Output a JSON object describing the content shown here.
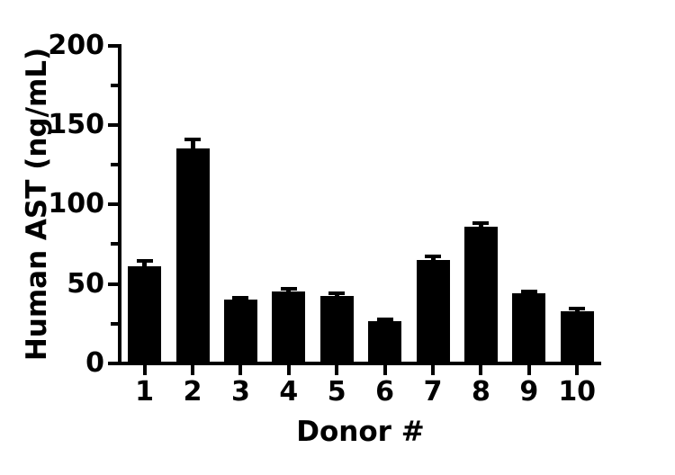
{
  "figure": {
    "background_color": "#ffffff",
    "bar_color": "#000000",
    "axis_color": "#000000",
    "text_color": "#000000"
  },
  "chart_data": {
    "type": "bar",
    "title": "",
    "xlabel": "Donor #",
    "ylabel": "Human AST (ng/mL)",
    "categories": [
      "1",
      "2",
      "3",
      "4",
      "5",
      "6",
      "7",
      "8",
      "9",
      "10"
    ],
    "series": [
      {
        "name": "Human AST",
        "values": [
          61,
          135.5,
          40,
          45.5,
          42.5,
          26.5,
          65,
          86,
          44,
          33
        ],
        "errors_upper": [
          3.5,
          5.5,
          1.5,
          1.5,
          1.5,
          1.0,
          2.5,
          2.5,
          1.5,
          1.5
        ]
      }
    ],
    "ylim": [
      0,
      200
    ],
    "y_major_ticks": [
      0,
      50,
      100,
      150,
      200
    ],
    "y_minor_ticks": [
      25,
      75,
      125,
      175
    ],
    "grid": false,
    "legend": null,
    "error_bar_style": "upper only, capped"
  }
}
